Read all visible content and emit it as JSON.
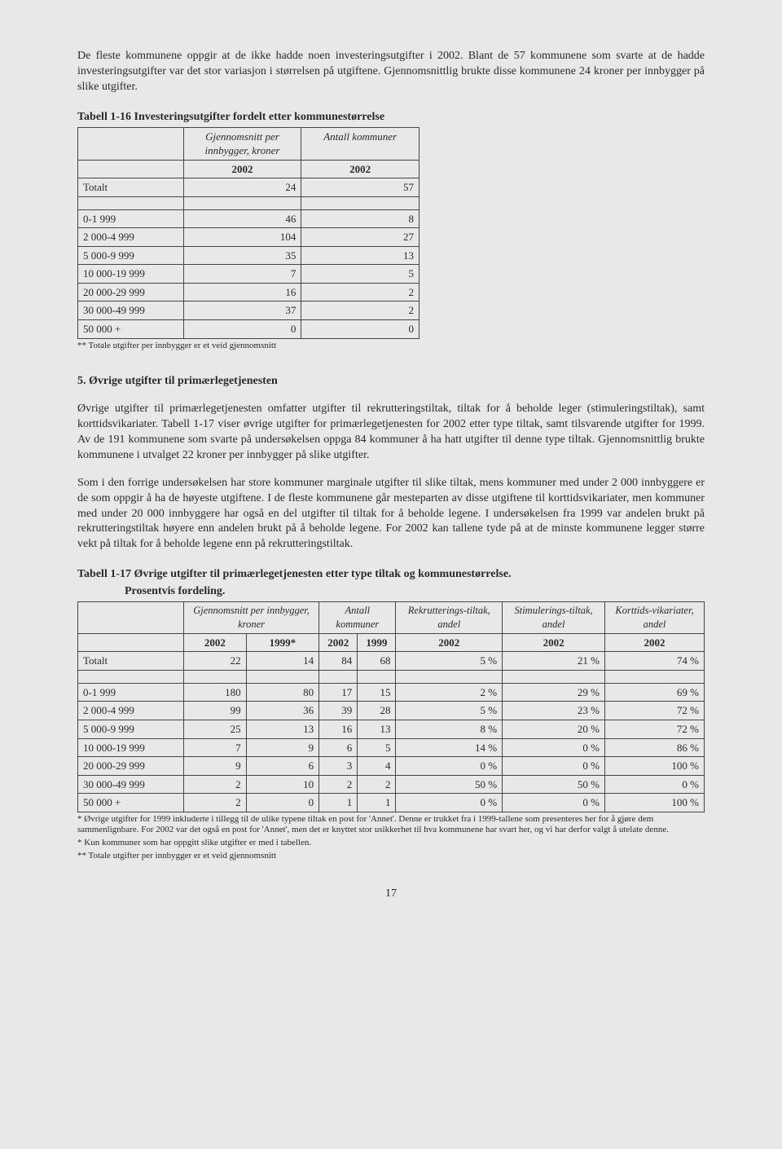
{
  "intro_para": "De fleste kommunene oppgir at de ikke hadde noen investeringsutgifter i 2002. Blant de 57 kommunene som svarte at de hadde investeringsutgifter var det stor variasjon i størrelsen på utgiftene. Gjennomsnittlig brukte disse kommunene 24 kroner per innbygger på slike utgifter.",
  "table1_title": "Tabell 1-16 Investeringsutgifter fordelt etter kommunestørrelse",
  "table1_header_col2": "Gjennomsnitt per innbygger, kroner",
  "table1_header_col3": "Antall kommuner",
  "table1_year_col2": "2002",
  "table1_year_col3": "2002",
  "table1_rows": [
    {
      "label": "Totalt",
      "v1": "24",
      "v2": "57"
    },
    {
      "label": "",
      "v1": "",
      "v2": ""
    },
    {
      "label": "0-1 999",
      "v1": "46",
      "v2": "8"
    },
    {
      "label": "2 000-4 999",
      "v1": "104",
      "v2": "27"
    },
    {
      "label": "5 000-9 999",
      "v1": "35",
      "v2": "13"
    },
    {
      "label": "10 000-19 999",
      "v1": "7",
      "v2": "5"
    },
    {
      "label": "20 000-29 999",
      "v1": "16",
      "v2": "2"
    },
    {
      "label": "30 000-49 999",
      "v1": "37",
      "v2": "2"
    },
    {
      "label": "50 000 +",
      "v1": "0",
      "v2": "0"
    }
  ],
  "table1_footnote": "** Totale utgifter per innbygger er et veid gjennomsnitt",
  "section5_heading": "5. Øvrige utgifter til primærlegetjenesten",
  "section5_para1": "Øvrige utgifter til primærlegetjenesten omfatter utgifter til rekrutteringstiltak, tiltak for å beholde leger (stimuleringstiltak), samt korttidsvikariater. Tabell 1-17 viser øvrige utgifter for primærlegetjenesten for 2002 etter type tiltak, samt tilsvarende utgifter for 1999. Av de 191 kommunene som svarte på undersøkelsen oppga 84 kommuner å ha hatt utgifter til denne type tiltak. Gjennomsnittlig brukte kommunene i utvalget 22 kroner per innbygger på slike utgifter.",
  "section5_para2": "Som i den forrige undersøkelsen har store kommuner marginale utgifter til slike tiltak, mens kommuner med under 2 000 innbyggere er de som oppgir å ha de høyeste utgiftene. I de fleste kommunene går mesteparten av disse utgiftene til korttidsvikariater, men kommuner med under 20 000 innbyggere har også en del utgifter til tiltak for å beholde legene. I undersøkelsen fra 1999 var andelen brukt på rekrutteringstiltak høyere enn andelen brukt på å beholde legene. For 2002 kan tallene tyde på at de minste kommunene legger større vekt på tiltak for å beholde legene enn på rekrutteringstiltak.",
  "table2_title": "Tabell 1-17 Øvrige utgifter til primærlegetjenesten etter type tiltak og kommunestørrelse.",
  "table2_subtitle": "Prosentvis fordeling.",
  "table2_headers": {
    "h1": "Gjennomsnitt per innbygger, kroner",
    "h2": "Antall kommuner",
    "h3": "Rekrutterings-tiltak, andel",
    "h4": "Stimulerings-tiltak, andel",
    "h5": "Korttids-vikariater, andel"
  },
  "table2_years": [
    "2002",
    "1999*",
    "2002",
    "1999",
    "2002",
    "2002",
    "2002"
  ],
  "table2_rows": [
    {
      "label": "Totalt",
      "c": [
        "22",
        "14",
        "84",
        "68",
        "5 %",
        "21 %",
        "74 %"
      ]
    },
    {
      "label": "",
      "c": [
        "",
        "",
        "",
        "",
        "",
        "",
        ""
      ]
    },
    {
      "label": "0-1 999",
      "c": [
        "180",
        "80",
        "17",
        "15",
        "2 %",
        "29 %",
        "69 %"
      ]
    },
    {
      "label": "2 000-4 999",
      "c": [
        "99",
        "36",
        "39",
        "28",
        "5 %",
        "23 %",
        "72 %"
      ]
    },
    {
      "label": "5 000-9 999",
      "c": [
        "25",
        "13",
        "16",
        "13",
        "8 %",
        "20 %",
        "72 %"
      ]
    },
    {
      "label": "10 000-19 999",
      "c": [
        "7",
        "9",
        "6",
        "5",
        "14 %",
        "0 %",
        "86 %"
      ]
    },
    {
      "label": "20 000-29 999",
      "c": [
        "9",
        "6",
        "3",
        "4",
        "0 %",
        "0 %",
        "100 %"
      ]
    },
    {
      "label": "30 000-49 999",
      "c": [
        "2",
        "10",
        "2",
        "2",
        "50 %",
        "50 %",
        "0 %"
      ]
    },
    {
      "label": "50 000 +",
      "c": [
        "2",
        "0",
        "1",
        "1",
        "0 %",
        "0 %",
        "100 %"
      ]
    }
  ],
  "table2_footnote1": "* Øvrige utgifter for 1999 inkluderte i tillegg til de ulike typene tiltak en post for 'Annet'. Denne er trukket fra i 1999-tallene som presenteres her for å gjøre dem sammenlignbare. For 2002 var det også en post for 'Annet', men det er knyttet stor usikkerhet til hva kommunene har svart her, og vi har derfor valgt å utelate denne.",
  "table2_footnote2": "* Kun kommuner som har oppgitt slike utgifter er med i tabellen.",
  "table2_footnote3": "** Totale utgifter per innbygger er et veid gjennomsnitt",
  "page_number": "17"
}
